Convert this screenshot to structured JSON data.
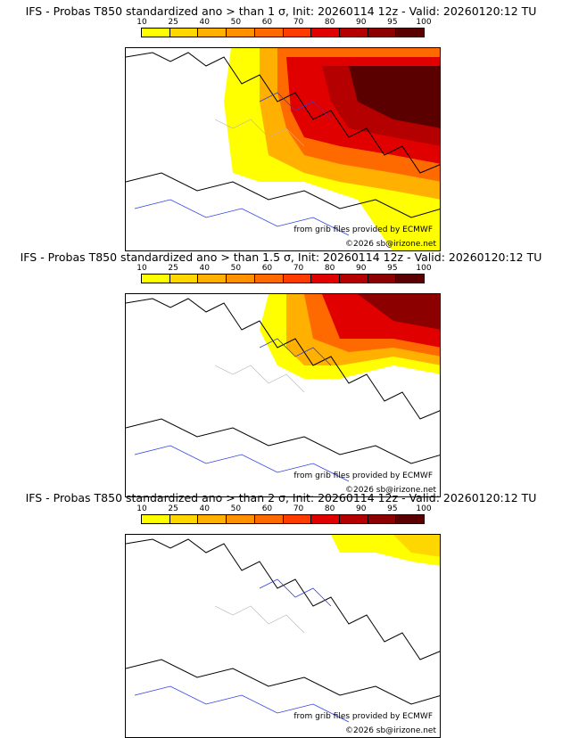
{
  "legend": {
    "labels": [
      "10",
      "25",
      "40",
      "50",
      "60",
      "70",
      "80",
      "90",
      "95",
      "100"
    ],
    "colors": [
      "#ffff00",
      "#ffd700",
      "#ffb000",
      "#ff9000",
      "#ff6a00",
      "#ff3c00",
      "#e00000",
      "#b40000",
      "#8c0000",
      "#5a0000"
    ]
  },
  "colors": {
    "coast": "#000000",
    "rivers": "#3040e0",
    "borders": "#b4b4b4"
  },
  "panels": [
    {
      "title": "IFS - Probas T850  standardized ano > than 1 σ, Init: 20260114 12z - Valid: 20260120:12 TU",
      "source_credit": "from grib files provided by ECMWF",
      "copyright": "©2026 sb@irizone.net",
      "icons": [
        "coastline-map-icon",
        "probability-shading-icon"
      ]
    },
    {
      "title": "IFS - Probas T850  standardized ano > than 1.5 σ, Init: 20260114 12z - Valid: 20260120:12 TU",
      "source_credit": "from grib files provided by ECMWF",
      "copyright": "©2026 sb@irizone.net",
      "icons": [
        "coastline-map-icon",
        "probability-shading-icon"
      ]
    },
    {
      "title": "IFS - Probas T850  standardized ano > than 2 σ, Init: 20260114 12z - Valid: 20260120:12 TU",
      "source_credit": "from grib files provided by ECMWF",
      "copyright": "©2026 sb@irizone.net",
      "icons": [
        "coastline-map-icon",
        "probability-shading-icon"
      ]
    }
  ]
}
